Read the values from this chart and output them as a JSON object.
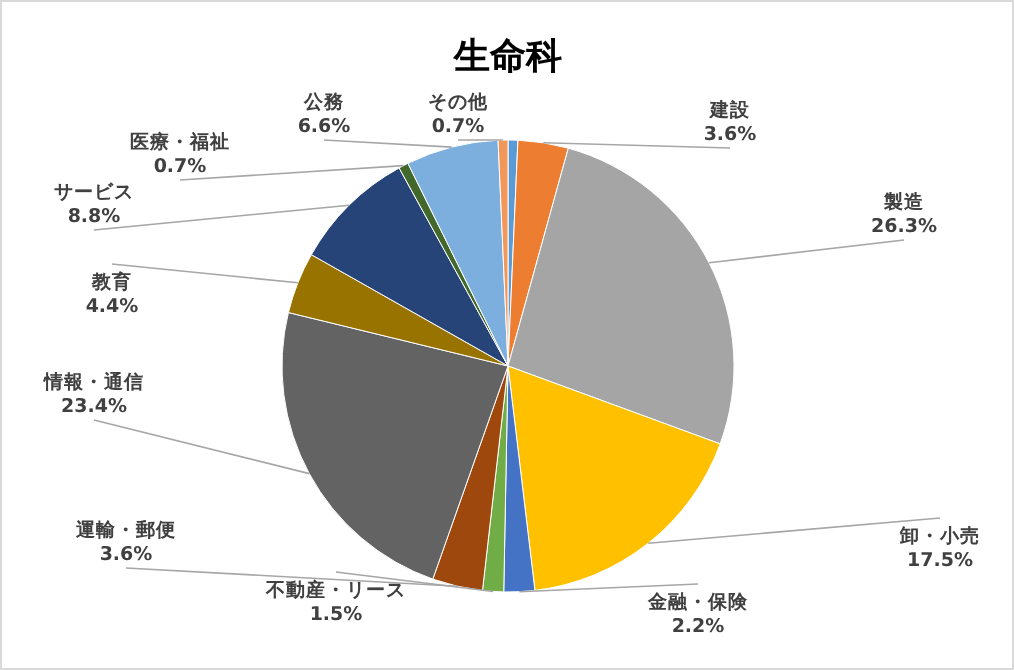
{
  "chart_data": {
    "type": "pie",
    "title": "生命科",
    "categories": [
      null,
      "建設",
      "製造",
      "卸・小売",
      "金融・保険",
      "不動産・リース",
      "運輸・郵便",
      "情報・通信",
      "教育",
      "サービス",
      "医療・福祉",
      "公務",
      "その他"
    ],
    "values": [
      0.7,
      3.6,
      26.3,
      17.5,
      2.2,
      1.5,
      3.6,
      23.4,
      4.4,
      8.8,
      0.7,
      6.6,
      0.7
    ],
    "value_labels": [
      null,
      "3.6%",
      "26.3%",
      "17.5%",
      "2.2%",
      "1.5%",
      "3.6%",
      "23.4%",
      "4.4%",
      "8.8%",
      "0.7%",
      "6.6%",
      "0.7%"
    ],
    "colors": [
      "#5b9bd5",
      "#ed7d31",
      "#a5a5a5",
      "#ffc000",
      "#4472c4",
      "#70ad47",
      "#9e480e",
      "#636363",
      "#997300",
      "#264478",
      "#43682b",
      "#7cafdd",
      "#f1975a"
    ]
  }
}
